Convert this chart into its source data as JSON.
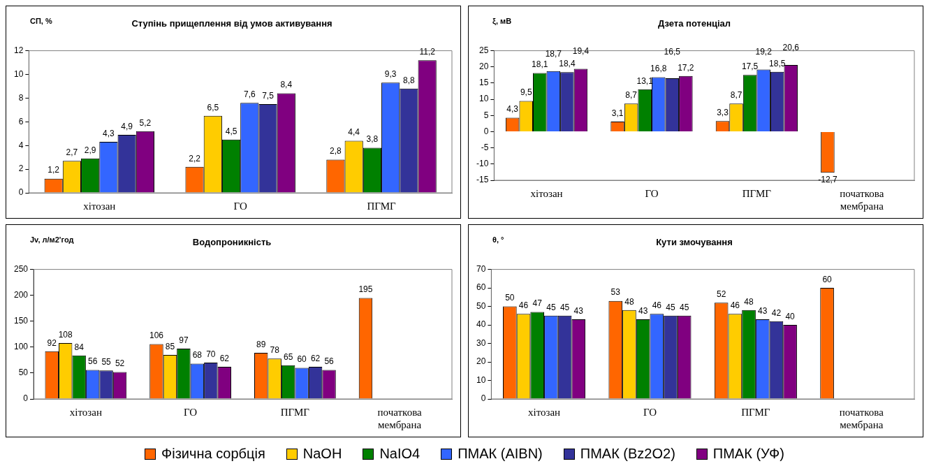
{
  "chart_data": [
    {
      "type": "bar",
      "title": "Ступінь прищеплення від умов активування",
      "ylabel": "СП, %",
      "categories": [
        "хітозан",
        "ГО",
        "ПГМГ"
      ],
      "ylim": [
        0,
        12
      ],
      "yticks": [
        0,
        2,
        4,
        6,
        8,
        10,
        12
      ],
      "grid": false,
      "legend": "bottom",
      "series": [
        {
          "name": "Фізична сорбція",
          "color": "#ff6600",
          "values": [
            1.2,
            2.2,
            2.8
          ],
          "value_labels": [
            "1,2",
            "2,2",
            "2,8"
          ]
        },
        {
          "name": "NaOH",
          "color": "#ffcc00",
          "values": [
            2.7,
            6.5,
            4.4
          ],
          "value_labels": [
            "2,7",
            "6,5",
            "4,4"
          ]
        },
        {
          "name": "NaIO4",
          "color": "#008000",
          "values": [
            2.9,
            4.5,
            3.8
          ],
          "value_labels": [
            "2,9",
            "4,5",
            "3,8"
          ]
        },
        {
          "name": "ПМАК (AIBN)",
          "color": "#3366ff",
          "values": [
            4.3,
            7.6,
            9.3
          ],
          "value_labels": [
            "4,3",
            "7,6",
            "9,3"
          ]
        },
        {
          "name": "ПМАК (Bz2O2)",
          "color": "#333399",
          "values": [
            4.9,
            7.5,
            8.8
          ],
          "value_labels": [
            "4,9",
            "7,5",
            "8,8"
          ]
        },
        {
          "name": "ПМАК (УФ)",
          "color": "#800080",
          "values": [
            5.2,
            8.4,
            11.2
          ],
          "value_labels": [
            "5,2",
            "8,4",
            "11,2"
          ]
        }
      ]
    },
    {
      "type": "bar",
      "title": "Дзета потенціал",
      "ylabel": "ξ, мВ",
      "categories": [
        "хітозан",
        "ГО",
        "ПГМГ",
        "початкова мембрана"
      ],
      "ylim": [
        -15,
        25
      ],
      "yticks": [
        -15,
        -10,
        -5,
        0,
        5,
        10,
        15,
        20,
        25
      ],
      "grid": false,
      "series": [
        {
          "color": "#ff6600",
          "values": [
            4.3,
            3.1,
            3.3,
            -12.7
          ],
          "value_labels": [
            "4,3",
            "3,1",
            "3,3",
            "-12,7"
          ]
        },
        {
          "color": "#ffcc00",
          "values": [
            9.5,
            8.7,
            8.7,
            null
          ],
          "value_labels": [
            "9,5",
            "8,7",
            "8,7",
            null
          ]
        },
        {
          "color": "#008000",
          "values": [
            18.1,
            13.1,
            17.5,
            null
          ],
          "value_labels": [
            "18,1",
            "13,1",
            "17,5",
            null
          ]
        },
        {
          "color": "#3366ff",
          "values": [
            18.7,
            16.8,
            19.2,
            null
          ],
          "value_labels": [
            "18,7",
            "16,8",
            "19,2",
            null
          ]
        },
        {
          "color": "#333399",
          "values": [
            18.4,
            16.5,
            18.5,
            null
          ],
          "value_labels": [
            "18,4",
            "16,5",
            "18,5",
            null
          ]
        },
        {
          "color": "#800080",
          "values": [
            19.4,
            17.2,
            20.6,
            null
          ],
          "value_labels": [
            "19,4",
            "17,2",
            "20,6",
            null
          ]
        }
      ]
    },
    {
      "type": "bar",
      "title": "Водопроникність",
      "ylabel": "Jv, л/м2'год",
      "categories": [
        "хітозан",
        "ГО",
        "ПГМГ",
        "початкова мембрана"
      ],
      "ylim": [
        0,
        250
      ],
      "yticks": [
        0,
        50,
        100,
        150,
        200,
        250
      ],
      "grid": false,
      "data_labels": true,
      "series": [
        {
          "color": "#ff6600",
          "values": [
            92,
            106,
            89,
            195
          ]
        },
        {
          "color": "#ffcc00",
          "values": [
            108,
            85,
            78,
            null
          ]
        },
        {
          "color": "#008000",
          "values": [
            84,
            97,
            65,
            null
          ]
        },
        {
          "color": "#3366ff",
          "values": [
            56,
            68,
            60,
            null
          ]
        },
        {
          "color": "#333399",
          "values": [
            55,
            70,
            62,
            null
          ]
        },
        {
          "color": "#800080",
          "values": [
            52,
            62,
            56,
            null
          ]
        }
      ]
    },
    {
      "type": "bar",
      "title": "Кути змочування",
      "ylabel": "θ, °",
      "categories": [
        "хітозан",
        "ГО",
        "ПГМГ",
        "початкова мембрана"
      ],
      "ylim": [
        0,
        70
      ],
      "yticks": [
        0,
        10,
        20,
        30,
        40,
        50,
        60,
        70
      ],
      "grid": false,
      "data_labels": true,
      "series": [
        {
          "color": "#ff6600",
          "values": [
            50,
            53,
            52,
            60
          ]
        },
        {
          "color": "#ffcc00",
          "values": [
            46,
            48,
            46,
            null
          ]
        },
        {
          "color": "#008000",
          "values": [
            47,
            43,
            48,
            null
          ]
        },
        {
          "color": "#3366ff",
          "values": [
            45,
            46,
            43,
            null
          ]
        },
        {
          "color": "#333399",
          "values": [
            45,
            45,
            42,
            null
          ]
        },
        {
          "color": "#800080",
          "values": [
            43,
            45,
            40,
            null
          ]
        }
      ]
    }
  ]
}
